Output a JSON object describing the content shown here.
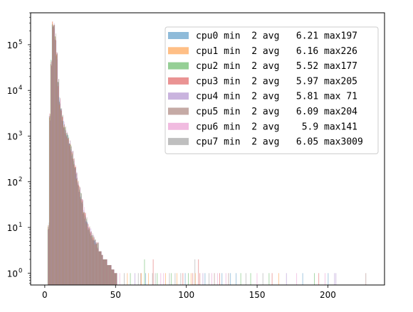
{
  "chart_data": {
    "type": "histogram",
    "title": "",
    "xlabel": "",
    "ylabel": "",
    "yscale": "log",
    "xlim": [
      -10,
      240
    ],
    "ylim": [
      0.55,
      500000
    ],
    "x_ticks": [
      {
        "value": 0,
        "label": "0"
      },
      {
        "value": 50,
        "label": "50"
      },
      {
        "value": 100,
        "label": "100"
      },
      {
        "value": 150,
        "label": "150"
      },
      {
        "value": 200,
        "label": "200"
      }
    ],
    "y_ticks": [
      {
        "value": 1,
        "base": "10",
        "exp": "0"
      },
      {
        "value": 10,
        "base": "10",
        "exp": "1"
      },
      {
        "value": 100,
        "base": "10",
        "exp": "2"
      },
      {
        "value": 1000,
        "base": "10",
        "exp": "3"
      },
      {
        "value": 10000,
        "base": "10",
        "exp": "4"
      },
      {
        "value": 100000,
        "base": "10",
        "exp": "5"
      }
    ],
    "grid": false,
    "legend_position": "top-right",
    "bar_opacity": 0.5,
    "series": [
      {
        "name": "cpu0 min  2 avg   6.21 max197",
        "color": "#1f77b4"
      },
      {
        "name": "cpu1 min  2 avg   6.16 max226",
        "color": "#ff7f0e"
      },
      {
        "name": "cpu2 min  2 avg   5.52 max177",
        "color": "#2ca02c"
      },
      {
        "name": "cpu3 min  2 avg   5.97 max205",
        "color": "#d62728"
      },
      {
        "name": "cpu4 min  2 avg   5.81 max 71",
        "color": "#9467bd"
      },
      {
        "name": "cpu5 min  2 avg   6.09 max204",
        "color": "#8c564b"
      },
      {
        "name": "cpu6 min  2 avg    5.9 max141",
        "color": "#e377c2"
      },
      {
        "name": "cpu7 min  2 avg   6.05 max3009",
        "color": "#7f7f7f"
      }
    ],
    "main_distribution": [
      [
        2,
        11
      ],
      [
        3,
        2700
      ],
      [
        4,
        40000
      ],
      [
        5,
        280000
      ],
      [
        6,
        250000
      ],
      [
        7,
        150000
      ],
      [
        8,
        60000
      ],
      [
        9,
        15000
      ],
      [
        10,
        6000
      ],
      [
        11,
        3500
      ],
      [
        12,
        2500
      ],
      [
        13,
        1800
      ],
      [
        14,
        1400
      ],
      [
        15,
        1100
      ],
      [
        16,
        900
      ],
      [
        17,
        700
      ],
      [
        18,
        550
      ],
      [
        19,
        400
      ],
      [
        20,
        280
      ],
      [
        21,
        200
      ],
      [
        22,
        140
      ],
      [
        23,
        100
      ],
      [
        24,
        70
      ],
      [
        25,
        50
      ],
      [
        26,
        35
      ],
      [
        27,
        25
      ],
      [
        28,
        18
      ],
      [
        29,
        14
      ],
      [
        30,
        11
      ],
      [
        31,
        9
      ],
      [
        32,
        8
      ],
      [
        33,
        7
      ],
      [
        34,
        6
      ],
      [
        35,
        5
      ],
      [
        36,
        4
      ],
      [
        37,
        4
      ],
      [
        38,
        3
      ],
      [
        39,
        3
      ],
      [
        40,
        2.5
      ],
      [
        41,
        2
      ],
      [
        42,
        2
      ],
      [
        43,
        2
      ],
      [
        44,
        1.5
      ],
      [
        45,
        1.5
      ],
      [
        46,
        1.5
      ],
      [
        47,
        1.2
      ],
      [
        48,
        1.2
      ],
      [
        49,
        1
      ],
      [
        50,
        1
      ]
    ],
    "tail_bins": [
      [
        52,
        1
      ],
      [
        55,
        1
      ],
      [
        58,
        1
      ],
      [
        60,
        1
      ],
      [
        63,
        1
      ],
      [
        65,
        1
      ],
      [
        67,
        1
      ],
      [
        68,
        1
      ],
      [
        70,
        2
      ],
      [
        71,
        1
      ],
      [
        73,
        1
      ],
      [
        75,
        1
      ],
      [
        76,
        2
      ],
      [
        77,
        1
      ],
      [
        79,
        1
      ],
      [
        81,
        1
      ],
      [
        83,
        1
      ],
      [
        85,
        1
      ],
      [
        87,
        1
      ],
      [
        89,
        1
      ],
      [
        91,
        1
      ],
      [
        93,
        1
      ],
      [
        95,
        1
      ],
      [
        97,
        1
      ],
      [
        99,
        1
      ],
      [
        101,
        1
      ],
      [
        103,
        1
      ],
      [
        104,
        1
      ],
      [
        105,
        2
      ],
      [
        106,
        1
      ],
      [
        108,
        2
      ],
      [
        109,
        1
      ],
      [
        111,
        1
      ],
      [
        113,
        1
      ],
      [
        115,
        1
      ],
      [
        117,
        1
      ],
      [
        119,
        1
      ],
      [
        121,
        1
      ],
      [
        123,
        1
      ],
      [
        125,
        1
      ],
      [
        127,
        1
      ],
      [
        129,
        1
      ],
      [
        131,
        1
      ],
      [
        135,
        1
      ],
      [
        138,
        1
      ],
      [
        141,
        1
      ],
      [
        145,
        1
      ],
      [
        149,
        1
      ],
      [
        153,
        1
      ],
      [
        158,
        1
      ],
      [
        160,
        1
      ],
      [
        165,
        1
      ],
      [
        170,
        1
      ],
      [
        177,
        1
      ],
      [
        182,
        1
      ],
      [
        190,
        1
      ],
      [
        193,
        1
      ],
      [
        197,
        1
      ],
      [
        200,
        1
      ],
      [
        204,
        1
      ],
      [
        205,
        1
      ],
      [
        226,
        1
      ]
    ]
  }
}
